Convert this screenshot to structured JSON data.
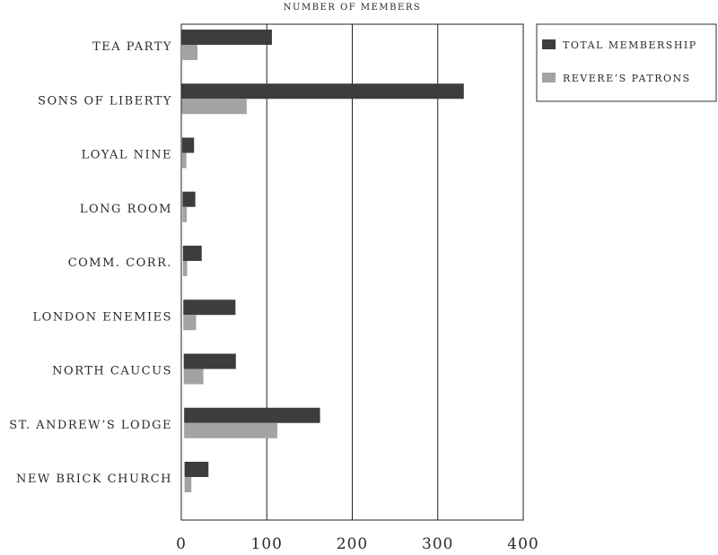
{
  "chart_data": {
    "type": "bar",
    "orientation": "horizontal",
    "title": "NUMBER OF MEMBERS",
    "categories": [
      "TEA PARTY",
      "SONS OF LIBERTY",
      "LOYAL NINE",
      "LONG ROOM",
      "COMM. CORR.",
      "LONDON ENEMIES",
      "NORTH CAUCUS",
      "ST. ANDREW’S LODGE",
      "NEW BRICK CHURCH"
    ],
    "series": [
      {
        "name": "TOTAL MEMBERSHIP",
        "color": "#3d3d3d",
        "values": [
          106,
          330,
          14,
          15,
          22,
          61,
          61,
          159,
          28
        ]
      },
      {
        "name": "REVERE’S PATRONS",
        "color": "#a3a3a3",
        "values": [
          19,
          76,
          5,
          5,
          5,
          15,
          23,
          109,
          8
        ]
      }
    ],
    "xlim": [
      0,
      400
    ],
    "xticks": [
      "0",
      "100",
      "200",
      "300",
      "400"
    ],
    "grid": true,
    "legend_position": "top-right"
  }
}
